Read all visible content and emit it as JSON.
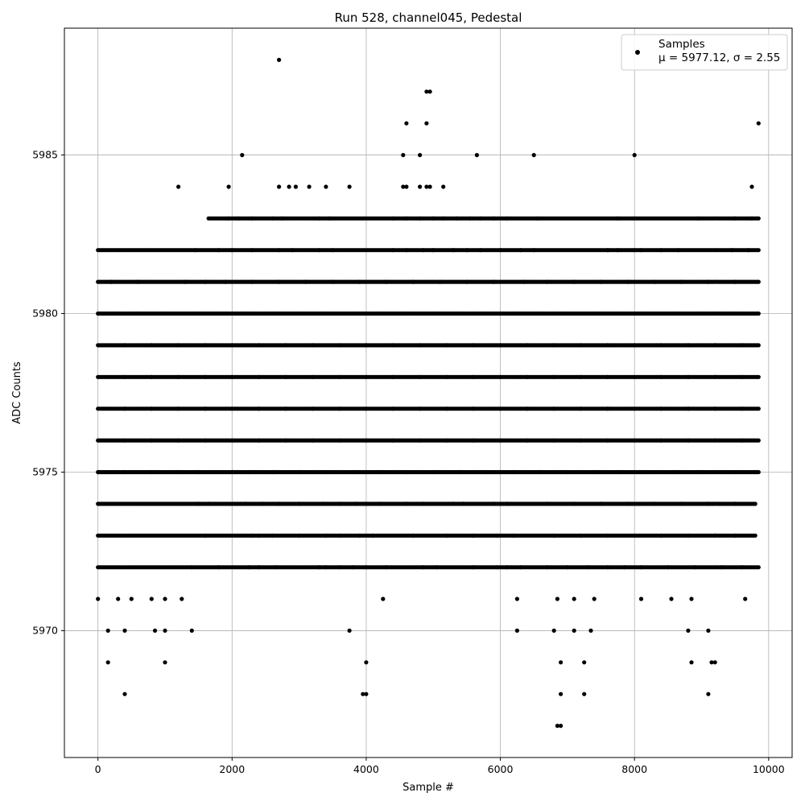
{
  "chart_data": {
    "type": "scatter",
    "title": "Run 528, channel045, Pedestal",
    "xlabel": "Sample #",
    "ylabel": "ADC Counts",
    "xlim": [
      -500,
      10350
    ],
    "ylim": [
      5966,
      5989
    ],
    "xticks": [
      0,
      2000,
      4000,
      6000,
      8000,
      10000
    ],
    "yticks": [
      5970,
      5975,
      5980,
      5985
    ],
    "grid": true,
    "legend_position": "top-right",
    "legend": {
      "series": "Samples",
      "stats": "μ = 5977.12, σ = 2.55"
    },
    "marker_color": "#000000",
    "series": [
      {
        "name": "Samples",
        "points_note_free": true,
        "x_range": [
          0,
          9850
        ],
        "bands": [
          {
            "y": 5972,
            "x": [
              0,
              1400,
              1800,
              2250,
              2400,
              2650,
              3300,
              3400,
              3600,
              3800,
              4000,
              4300,
              4850,
              5050,
              5600,
              5950,
              6100,
              6300,
              6700,
              7000,
              7300,
              7600,
              7850,
              8100,
              8500,
              8900,
              9300,
              9600,
              9850
            ]
          },
          {
            "y": 5973,
            "x": [
              0,
              1600,
              2300,
              2400,
              2600,
              3000,
              3400,
              3600,
              3900,
              4100,
              4700,
              5200,
              5600,
              5950,
              6200,
              6800,
              7200,
              7600,
              8000,
              8400,
              8800,
              9200,
              9500,
              9800
            ]
          },
          {
            "y": 5974,
            "x": [
              0,
              1500,
              1650,
              2200,
              2450,
              2700,
              3000,
              3350,
              3600,
              3850,
              4000,
              4200,
              4600,
              4850,
              5300,
              5450,
              5900,
              6100,
              6700,
              7100,
              7500,
              7900,
              8300,
              8700,
              9100,
              9500,
              9800
            ]
          },
          {
            "y": 5975,
            "x": [
              0,
              400,
              800,
              1200,
              1500,
              2000,
              2250,
              2600,
              3000,
              3400,
              3800,
              4200,
              4600,
              5000,
              5400,
              5800,
              6200,
              6600,
              7000,
              7400,
              7800,
              8200,
              8600,
              9000,
              9400,
              9850
            ]
          },
          {
            "y": 5976,
            "x": [
              0,
              400,
              800,
              1200,
              1600,
              2000,
              2400,
              2800,
              3200,
              3600,
              4000,
              4400,
              4800,
              5200,
              5600,
              6000,
              6400,
              6800,
              7200,
              7600,
              8000,
              8400,
              8800,
              9200,
              9600,
              9850
            ]
          },
          {
            "y": 5977,
            "x": [
              0,
              400,
              800,
              1200,
              1600,
              2000,
              2400,
              2800,
              3200,
              3600,
              4000,
              4400,
              4800,
              5200,
              5600,
              6000,
              6400,
              6800,
              7200,
              7600,
              8000,
              8400,
              8800,
              9200,
              9600,
              9850
            ]
          },
          {
            "y": 5978,
            "x": [
              0,
              400,
              800,
              1200,
              1600,
              2000,
              2400,
              2800,
              3200,
              3600,
              4000,
              4400,
              4800,
              5200,
              5600,
              6000,
              6400,
              6800,
              7200,
              7600,
              8000,
              8400,
              8800,
              9200,
              9600,
              9850
            ]
          },
          {
            "y": 5979,
            "x": [
              0,
              400,
              800,
              1200,
              1600,
              2000,
              2400,
              2800,
              3200,
              3600,
              4000,
              4400,
              4800,
              5200,
              5600,
              6000,
              6400,
              6800,
              7200,
              7600,
              8000,
              8400,
              8800,
              9200,
              9600,
              9850
            ]
          },
          {
            "y": 5980,
            "x": [
              0,
              300,
              600,
              1000,
              1400,
              1800,
              2200,
              2600,
              3000,
              3400,
              3800,
              4200,
              4600,
              5000,
              5400,
              5800,
              6200,
              6600,
              7000,
              7400,
              7800,
              8200,
              8600,
              9000,
              9400,
              9850
            ]
          },
          {
            "y": 5981,
            "x": [
              0,
              200,
              600,
              1300,
              1600,
              1900,
              2300,
              2700,
              3100,
              3500,
              3900,
              4300,
              4700,
              5100,
              5500,
              5900,
              6350,
              6700,
              7100,
              7500,
              7900,
              8300,
              8700,
              9100,
              9500,
              9850
            ]
          },
          {
            "y": 5982,
            "x": [
              0,
              1450,
              1800,
              2000,
              2300,
              2700,
              2900,
              3300,
              3500,
              4400,
              4600,
              4850,
              5000,
              5300,
              5500,
              5700,
              6000,
              6300,
              6500,
              7600,
              7750,
              8000,
              8100,
              8400,
              8650,
              9450,
              9700,
              9850
            ]
          },
          {
            "y": 5983,
            "x": [
              1650,
              1950,
              2100,
              2300,
              2600,
              2750,
              3300,
              3450,
              4400,
              4600,
              4800,
              5000,
              5150,
              5350,
              5550,
              5700,
              5900,
              6100,
              6550,
              7750,
              8000,
              8950,
              9500,
              9750,
              9850
            ]
          },
          {
            "y": 5984,
            "x": [
              1200,
              1950,
              2700,
              2850,
              2950,
              3150,
              3400,
              3750,
              4550,
              4600,
              4800,
              4900,
              4950,
              5150,
              9750
            ]
          },
          {
            "y": 5985,
            "x": [
              2150,
              4550,
              4800,
              5650,
              6500,
              8000
            ]
          },
          {
            "y": 5986,
            "x": [
              4600,
              4900,
              9850
            ]
          },
          {
            "y": 5987,
            "x": [
              4900,
              4950
            ]
          },
          {
            "y": 5988,
            "x": [
              2700
            ]
          },
          {
            "y": 5971,
            "x": [
              0,
              300,
              500,
              800,
              1000,
              1250,
              4250,
              6250,
              6850,
              7100,
              7400,
              8100,
              8550,
              8850,
              9650
            ]
          },
          {
            "y": 5970,
            "x": [
              150,
              400,
              850,
              1000,
              1400,
              3750,
              6250,
              6800,
              7100,
              7350,
              8800,
              9100
            ]
          },
          {
            "y": 5969,
            "x": [
              150,
              1000,
              4000,
              6900,
              7250,
              8850,
              9150,
              9200
            ]
          },
          {
            "y": 5968,
            "x": [
              400,
              3950,
              4000,
              6900,
              7250,
              9100
            ]
          },
          {
            "y": 5967,
            "x": [
              6850,
              6900
            ]
          }
        ]
      }
    ]
  }
}
